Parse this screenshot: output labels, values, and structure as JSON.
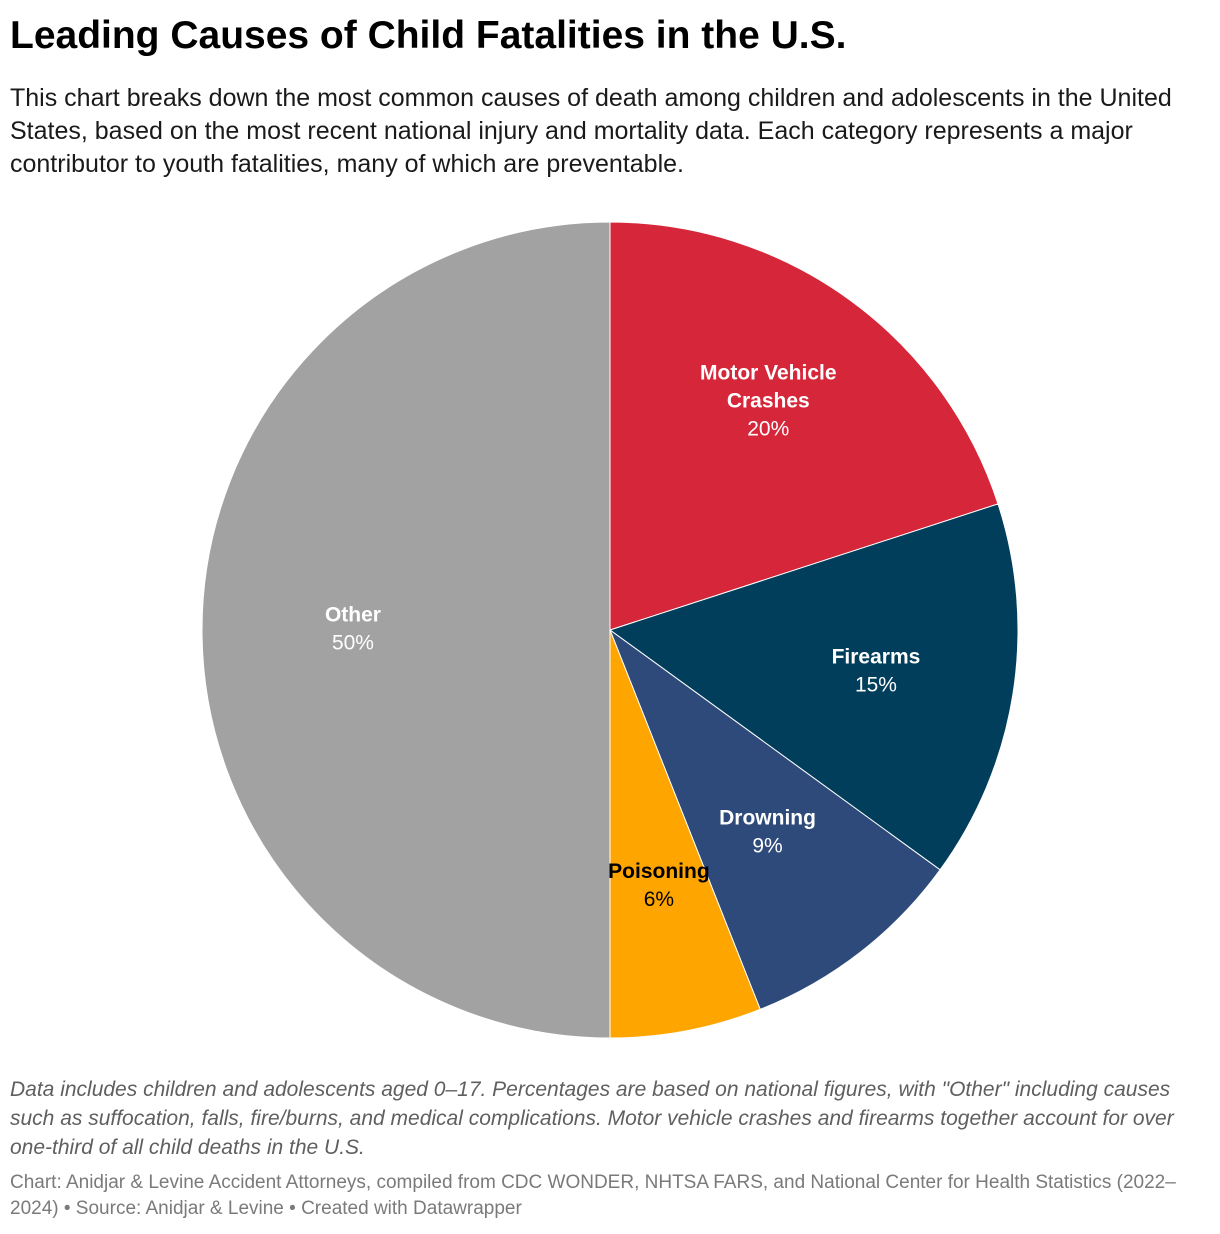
{
  "chart_data": {
    "type": "pie",
    "title": "Leading Causes of Child Fatalities in the U.S.",
    "subtitle": "This chart breaks down the most common causes of death among children and adolescents in the United States, based on the most recent national injury and mortality data. Each category represents a major contributor to youth fatalities, many of which are preventable.",
    "slices": [
      {
        "name_lines": [
          "Motor Vehicle",
          "Crashes"
        ],
        "value": 20,
        "label": "20%",
        "color": "#d62639",
        "text_color": "#ffffff"
      },
      {
        "name_lines": [
          "Firearms"
        ],
        "value": 15,
        "label": "15%",
        "color": "#003e5c",
        "text_color": "#ffffff"
      },
      {
        "name_lines": [
          "Drowning"
        ],
        "value": 9,
        "label": "9%",
        "color": "#2d4a7a",
        "text_color": "#ffffff"
      },
      {
        "name_lines": [
          "Poisoning"
        ],
        "value": 6,
        "label": "6%",
        "color": "#ffa500",
        "text_color": "#000000"
      },
      {
        "name_lines": [
          "Other"
        ],
        "value": 50,
        "label": "50%",
        "color": "#a2a2a2",
        "text_color": "#ffffff"
      }
    ],
    "start_angle": "12 o'clock",
    "direction": "clockwise",
    "notes": "Data includes children and adolescents aged 0–17. Percentages are based on national figures, with \"Other\" including causes such as suffocation, falls, fire/burns, and medical complications. Motor vehicle crashes and firearms together account for over one-third of all child deaths in the U.S.",
    "credits": "Chart: Anidjar & Levine Accident Attorneys, compiled from CDC WONDER, NHTSA FARS, and National Center for Health Statistics (2022–2024) • Source: Anidjar & Levine • Created with Datawrapper"
  }
}
